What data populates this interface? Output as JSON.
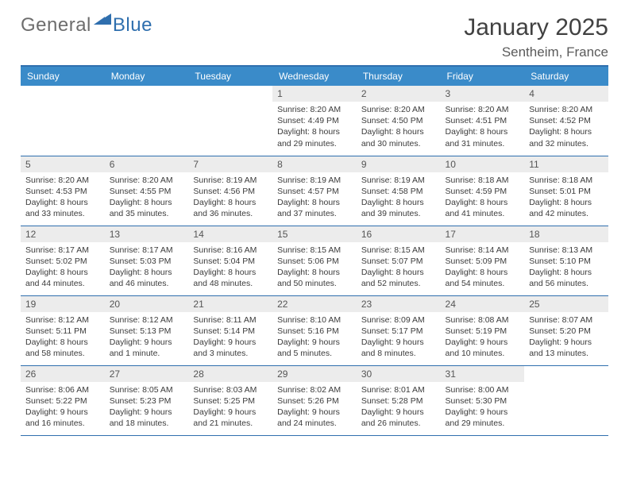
{
  "logo": {
    "text1": "General",
    "text2": "Blue"
  },
  "title": "January 2025",
  "location": "Sentheim, France",
  "colors": {
    "header_bg": "#3a8bc9",
    "rule": "#2f6fae",
    "daynum_bg": "#ececec",
    "text": "#3b3b3b"
  },
  "fonts": {
    "title_size": 30,
    "location_size": 17,
    "dayhead_size": 12,
    "body_size": 10.5
  },
  "dayHeaders": [
    "Sunday",
    "Monday",
    "Tuesday",
    "Wednesday",
    "Thursday",
    "Friday",
    "Saturday"
  ],
  "weeks": [
    [
      null,
      null,
      null,
      {
        "n": "1",
        "sr": "8:20 AM",
        "ss": "4:49 PM",
        "dl": "8 hours and 29 minutes."
      },
      {
        "n": "2",
        "sr": "8:20 AM",
        "ss": "4:50 PM",
        "dl": "8 hours and 30 minutes."
      },
      {
        "n": "3",
        "sr": "8:20 AM",
        "ss": "4:51 PM",
        "dl": "8 hours and 31 minutes."
      },
      {
        "n": "4",
        "sr": "8:20 AM",
        "ss": "4:52 PM",
        "dl": "8 hours and 32 minutes."
      }
    ],
    [
      {
        "n": "5",
        "sr": "8:20 AM",
        "ss": "4:53 PM",
        "dl": "8 hours and 33 minutes."
      },
      {
        "n": "6",
        "sr": "8:20 AM",
        "ss": "4:55 PM",
        "dl": "8 hours and 35 minutes."
      },
      {
        "n": "7",
        "sr": "8:19 AM",
        "ss": "4:56 PM",
        "dl": "8 hours and 36 minutes."
      },
      {
        "n": "8",
        "sr": "8:19 AM",
        "ss": "4:57 PM",
        "dl": "8 hours and 37 minutes."
      },
      {
        "n": "9",
        "sr": "8:19 AM",
        "ss": "4:58 PM",
        "dl": "8 hours and 39 minutes."
      },
      {
        "n": "10",
        "sr": "8:18 AM",
        "ss": "4:59 PM",
        "dl": "8 hours and 41 minutes."
      },
      {
        "n": "11",
        "sr": "8:18 AM",
        "ss": "5:01 PM",
        "dl": "8 hours and 42 minutes."
      }
    ],
    [
      {
        "n": "12",
        "sr": "8:17 AM",
        "ss": "5:02 PM",
        "dl": "8 hours and 44 minutes."
      },
      {
        "n": "13",
        "sr": "8:17 AM",
        "ss": "5:03 PM",
        "dl": "8 hours and 46 minutes."
      },
      {
        "n": "14",
        "sr": "8:16 AM",
        "ss": "5:04 PM",
        "dl": "8 hours and 48 minutes."
      },
      {
        "n": "15",
        "sr": "8:15 AM",
        "ss": "5:06 PM",
        "dl": "8 hours and 50 minutes."
      },
      {
        "n": "16",
        "sr": "8:15 AM",
        "ss": "5:07 PM",
        "dl": "8 hours and 52 minutes."
      },
      {
        "n": "17",
        "sr": "8:14 AM",
        "ss": "5:09 PM",
        "dl": "8 hours and 54 minutes."
      },
      {
        "n": "18",
        "sr": "8:13 AM",
        "ss": "5:10 PM",
        "dl": "8 hours and 56 minutes."
      }
    ],
    [
      {
        "n": "19",
        "sr": "8:12 AM",
        "ss": "5:11 PM",
        "dl": "8 hours and 58 minutes."
      },
      {
        "n": "20",
        "sr": "8:12 AM",
        "ss": "5:13 PM",
        "dl": "9 hours and 1 minute."
      },
      {
        "n": "21",
        "sr": "8:11 AM",
        "ss": "5:14 PM",
        "dl": "9 hours and 3 minutes."
      },
      {
        "n": "22",
        "sr": "8:10 AM",
        "ss": "5:16 PM",
        "dl": "9 hours and 5 minutes."
      },
      {
        "n": "23",
        "sr": "8:09 AM",
        "ss": "5:17 PM",
        "dl": "9 hours and 8 minutes."
      },
      {
        "n": "24",
        "sr": "8:08 AM",
        "ss": "5:19 PM",
        "dl": "9 hours and 10 minutes."
      },
      {
        "n": "25",
        "sr": "8:07 AM",
        "ss": "5:20 PM",
        "dl": "9 hours and 13 minutes."
      }
    ],
    [
      {
        "n": "26",
        "sr": "8:06 AM",
        "ss": "5:22 PM",
        "dl": "9 hours and 16 minutes."
      },
      {
        "n": "27",
        "sr": "8:05 AM",
        "ss": "5:23 PM",
        "dl": "9 hours and 18 minutes."
      },
      {
        "n": "28",
        "sr": "8:03 AM",
        "ss": "5:25 PM",
        "dl": "9 hours and 21 minutes."
      },
      {
        "n": "29",
        "sr": "8:02 AM",
        "ss": "5:26 PM",
        "dl": "9 hours and 24 minutes."
      },
      {
        "n": "30",
        "sr": "8:01 AM",
        "ss": "5:28 PM",
        "dl": "9 hours and 26 minutes."
      },
      {
        "n": "31",
        "sr": "8:00 AM",
        "ss": "5:30 PM",
        "dl": "9 hours and 29 minutes."
      },
      null
    ]
  ],
  "labels": {
    "sunrise": "Sunrise:",
    "sunset": "Sunset:",
    "daylight": "Daylight:"
  }
}
